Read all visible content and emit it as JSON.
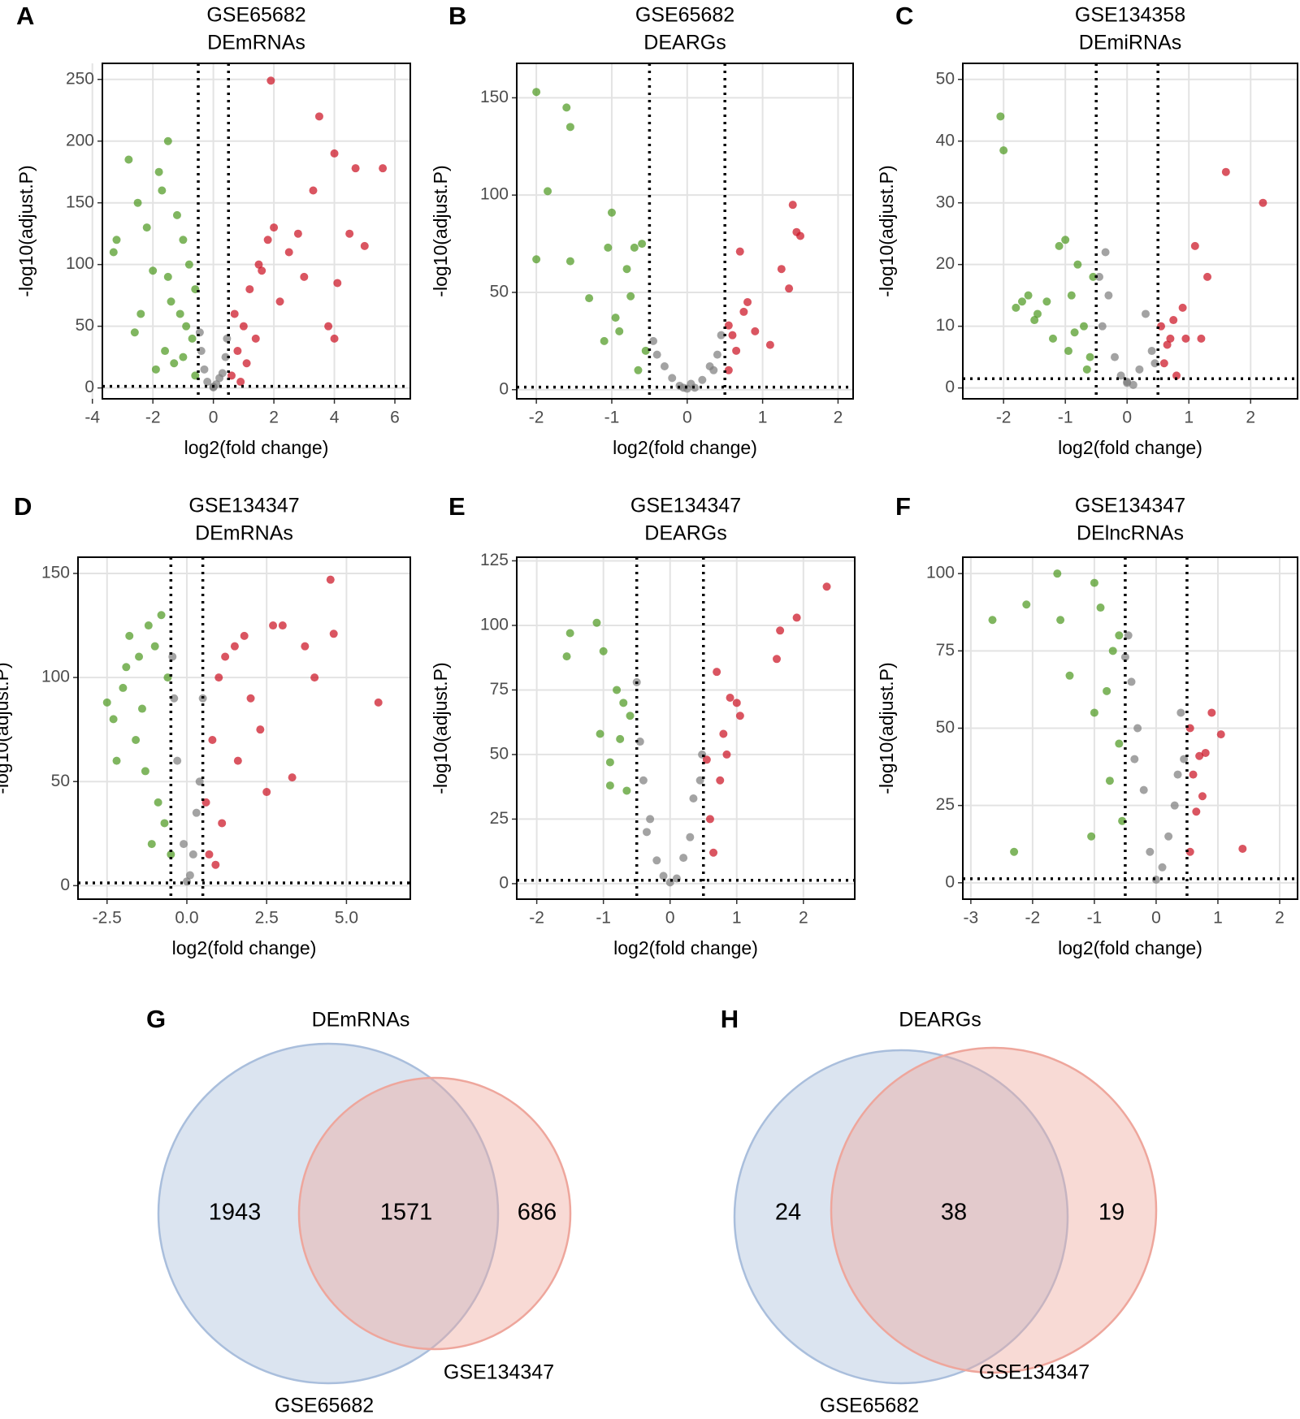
{
  "chart_data": [
    {
      "type": "scatter",
      "panel": "A",
      "title": "GSE65682",
      "subtitle": "DEmRNAs",
      "x_label": "log2(fold change)",
      "y_label": "-log10(adjust.P)",
      "xlim": [
        -3.67,
        6.51
      ],
      "ylim": [
        -8.8,
        263
      ],
      "xticks": [
        -4,
        -2,
        0,
        2,
        4,
        6
      ],
      "yticks": [
        0,
        50,
        100,
        150,
        200,
        250
      ],
      "grid": true,
      "vlines": [
        -0.5,
        0.5
      ],
      "hline": 1.3,
      "series": [
        {
          "color": "#4f9a22",
          "x": [
            -3.2,
            -3.3,
            -2.8,
            -2.5,
            -2.2,
            -1.8,
            -1.5,
            -1.7,
            -1.2,
            -1.0,
            -0.8,
            -0.6,
            -2.0,
            -1.4,
            -1.1,
            -0.9,
            -0.7,
            -1.6,
            -2.4,
            -1.3,
            -1.9,
            -0.6,
            -1.0,
            -2.6,
            -1.5
          ],
          "y": [
            120,
            110,
            185,
            150,
            130,
            175,
            200,
            160,
            140,
            120,
            100,
            80,
            95,
            70,
            60,
            50,
            40,
            30,
            60,
            20,
            15,
            10,
            25,
            45,
            90
          ]
        },
        {
          "color": "#7f7f7f",
          "x": [
            -0.4,
            -0.3,
            -0.2,
            0,
            0.1,
            0.2,
            0.3,
            0.4,
            -0.45,
            0.45,
            0
          ],
          "y": [
            30,
            15,
            5,
            1,
            3,
            8,
            12,
            25,
            45,
            40,
            0.5
          ]
        },
        {
          "color": "#cc1424",
          "x": [
            0.6,
            0.8,
            1.0,
            1.2,
            1.5,
            1.8,
            2.0,
            2.5,
            3.0,
            3.5,
            4.0,
            4.5,
            5.0,
            5.6,
            1.9,
            3.3,
            4.7,
            4.1,
            0.7,
            1.1,
            1.4,
            2.2,
            2.8,
            0.9,
            1.6,
            3.8,
            4.0
          ],
          "y": [
            10,
            30,
            50,
            80,
            100,
            120,
            130,
            110,
            90,
            220,
            190,
            125,
            115,
            178,
            249,
            160,
            178,
            85,
            60,
            20,
            40,
            70,
            125,
            5,
            95,
            50,
            40
          ]
        }
      ]
    },
    {
      "type": "scatter",
      "panel": "B",
      "title": "GSE65682",
      "subtitle": "DEARGs",
      "x_label": "log2(fold change)",
      "y_label": "-log10(adjust.P)",
      "xlim": [
        -2.26,
        2.2
      ],
      "ylim": [
        -4.7,
        167.7
      ],
      "xticks": [
        -2,
        -1,
        0,
        1,
        2
      ],
      "yticks": [
        0,
        50,
        100,
        150
      ],
      "grid": true,
      "vlines": [
        -0.5,
        0.5
      ],
      "hline": 1.3,
      "series": [
        {
          "color": "#4f9a22",
          "x": [
            -2.0,
            -2.0,
            -1.85,
            -1.6,
            -1.55,
            -1.55,
            -1.3,
            -1.0,
            -0.95,
            -1.05,
            -0.8,
            -0.7,
            -0.6,
            -0.9,
            -0.75,
            -0.55,
            -1.1,
            -0.65
          ],
          "y": [
            153,
            67,
            102,
            145,
            135,
            66,
            47,
            91,
            37,
            73,
            62,
            73,
            75,
            30,
            48,
            20,
            25,
            10
          ]
        },
        {
          "color": "#7f7f7f",
          "x": [
            -0.45,
            -0.3,
            -0.2,
            -0.1,
            0,
            0.1,
            0.2,
            0.3,
            0.4,
            0.45,
            -0.4,
            0.35,
            0.05,
            -0.05
          ],
          "y": [
            25,
            12,
            6,
            2,
            0.5,
            1,
            5,
            12,
            18,
            28,
            18,
            10,
            3,
            1
          ]
        },
        {
          "color": "#cc1424",
          "x": [
            0.55,
            0.6,
            0.7,
            0.8,
            0.65,
            0.9,
            1.1,
            1.25,
            1.4,
            1.45,
            1.5,
            1.35,
            0.75,
            0.55
          ],
          "y": [
            33,
            28,
            71,
            45,
            20,
            30,
            23,
            62,
            95,
            81,
            79,
            52,
            40,
            10
          ]
        }
      ]
    },
    {
      "type": "scatter",
      "panel": "C",
      "title": "GSE134358",
      "subtitle": "DEmiRNAs",
      "x_label": "log2(fold change)",
      "y_label": "-log10(adjust.P)",
      "xlim": [
        -2.66,
        2.76
      ],
      "ylim": [
        -1.76,
        52.6
      ],
      "xticks": [
        -2,
        -1,
        0,
        1,
        2
      ],
      "yticks": [
        0,
        10,
        20,
        30,
        40,
        50
      ],
      "grid": true,
      "vlines": [
        -0.5,
        0.5
      ],
      "hline": 1.5,
      "series": [
        {
          "color": "#4f9a22",
          "x": [
            -2.05,
            -2.0,
            -1.8,
            -1.6,
            -1.5,
            -1.3,
            -1.1,
            -1.0,
            -0.9,
            -0.8,
            -0.6,
            -0.7,
            -1.2,
            -1.45,
            -0.55,
            -0.95,
            -0.65,
            -0.85,
            -1.7
          ],
          "y": [
            44,
            38.5,
            13,
            15,
            11,
            14,
            23,
            24,
            15,
            20,
            5,
            10,
            8,
            12,
            18,
            6,
            3,
            9,
            14
          ]
        },
        {
          "color": "#7f7f7f",
          "x": [
            -0.4,
            -0.3,
            -0.2,
            0,
            0.2,
            0.3,
            0.4,
            -0.1,
            0.1,
            -0.35,
            0.45,
            -0.45,
            0
          ],
          "y": [
            10,
            15,
            5,
            1,
            3,
            12,
            6,
            2,
            0.5,
            22,
            4,
            18,
            0.8
          ]
        },
        {
          "color": "#cc1424",
          "x": [
            0.55,
            0.6,
            0.7,
            0.8,
            0.9,
            1.1,
            1.2,
            1.6,
            2.2,
            1.3,
            0.75,
            0.65,
            0.95
          ],
          "y": [
            10,
            4,
            8,
            2,
            13,
            23,
            8,
            35,
            30,
            18,
            11,
            7,
            8
          ]
        }
      ]
    },
    {
      "type": "scatter",
      "panel": "D",
      "title": "GSE134347",
      "subtitle": "DEmRNAs",
      "x_label": "log2(fold change)",
      "y_label": "-log10(adjust.P)",
      "xlim": [
        -3.41,
        7.0
      ],
      "ylim": [
        -6.5,
        157.8
      ],
      "xticks": [
        -2.5,
        {
          "value": 0,
          "label": "0.0"
        },
        2.5,
        {
          "value": 5,
          "label": "5.0"
        }
      ],
      "yticks": [
        0,
        50,
        100,
        150
      ],
      "grid": true,
      "vlines": [
        -0.5,
        0.5
      ],
      "hline": 1.3,
      "series": [
        {
          "color": "#4f9a22",
          "x": [
            -2.5,
            -2.3,
            -2.0,
            -1.8,
            -1.5,
            -1.2,
            -1.0,
            -0.8,
            -0.6,
            -2.2,
            -1.6,
            -1.3,
            -0.9,
            -0.7,
            -1.1,
            -0.5,
            -1.9,
            -1.4
          ],
          "y": [
            88,
            80,
            95,
            120,
            110,
            125,
            115,
            130,
            100,
            60,
            70,
            55,
            40,
            30,
            20,
            15,
            105,
            85
          ]
        },
        {
          "color": "#7f7f7f",
          "x": [
            -0.4,
            -0.3,
            -0.1,
            0,
            0.1,
            0.2,
            0.4,
            0.5,
            -0.45,
            0.3
          ],
          "y": [
            90,
            60,
            20,
            2,
            5,
            15,
            50,
            90,
            110,
            35
          ]
        },
        {
          "color": "#cc1424",
          "x": [
            0.6,
            0.8,
            1.0,
            1.2,
            1.5,
            1.8,
            2.0,
            2.3,
            2.7,
            3.0,
            3.3,
            3.7,
            4.0,
            4.5,
            4.6,
            6.0,
            1.1,
            0.7,
            1.6,
            2.5,
            0.9
          ],
          "y": [
            40,
            70,
            100,
            110,
            115,
            120,
            90,
            75,
            125,
            125,
            52,
            115,
            100,
            147,
            121,
            88,
            30,
            15,
            60,
            45,
            10
          ]
        }
      ]
    },
    {
      "type": "scatter",
      "panel": "E",
      "title": "GSE134347",
      "subtitle": "DEARGs",
      "x_label": "log2(fold change)",
      "y_label": "-log10(adjust.P)",
      "xlim": [
        -2.3,
        2.77
      ],
      "ylim": [
        -6,
        126.4
      ],
      "xticks": [
        -2,
        -1,
        0,
        1,
        2
      ],
      "yticks": [
        0,
        25,
        50,
        75,
        100,
        125
      ],
      "grid": true,
      "vlines": [
        -0.5,
        0.5
      ],
      "hline": 1.3,
      "series": [
        {
          "color": "#4f9a22",
          "x": [
            -1.55,
            -1.5,
            -1.1,
            -1.05,
            -1.0,
            -0.9,
            -0.8,
            -0.75,
            -0.7,
            -0.6,
            -0.65,
            -0.9
          ],
          "y": [
            88,
            97,
            101,
            58,
            90,
            38,
            75,
            56,
            70,
            65,
            36,
            47
          ]
        },
        {
          "color": "#7f7f7f",
          "x": [
            -0.5,
            -0.45,
            -0.4,
            -0.3,
            -0.2,
            -0.1,
            0,
            0.1,
            0.2,
            0.3,
            0.35,
            0.45,
            0.48,
            -0.35
          ],
          "y": [
            78,
            55,
            40,
            25,
            9,
            3,
            0.5,
            2,
            10,
            18,
            33,
            40,
            50,
            20
          ]
        },
        {
          "color": "#cc1424",
          "x": [
            0.55,
            0.6,
            0.7,
            0.8,
            0.9,
            1.0,
            1.05,
            0.65,
            1.6,
            1.65,
            1.9,
            2.35,
            0.75,
            0.85
          ],
          "y": [
            48,
            25,
            82,
            58,
            72,
            70,
            65,
            12,
            87,
            98,
            103,
            115,
            40,
            50
          ]
        }
      ]
    },
    {
      "type": "scatter",
      "panel": "F",
      "title": "GSE134347",
      "subtitle": "DElncRNAs",
      "x_label": "log2(fold change)",
      "y_label": "-log10(adjust.P)",
      "xlim": [
        -3.13,
        2.29
      ],
      "ylim": [
        -5.3,
        105.3
      ],
      "xticks": [
        -3,
        -2,
        -1,
        0,
        1,
        2
      ],
      "yticks": [
        0,
        25,
        50,
        75,
        100
      ],
      "grid": true,
      "vlines": [
        -0.5,
        0.5
      ],
      "hline": 1.3,
      "series": [
        {
          "color": "#4f9a22",
          "x": [
            -2.65,
            -2.3,
            -2.1,
            -1.6,
            -1.55,
            -1.4,
            -1.0,
            -1.05,
            -0.9,
            -0.8,
            -0.6,
            -0.7,
            -1.0,
            -0.75,
            -0.55,
            -0.6
          ],
          "y": [
            85,
            10,
            90,
            100,
            85,
            67,
            97,
            15,
            89,
            62,
            80,
            75,
            55,
            33,
            20,
            45
          ]
        },
        {
          "color": "#7f7f7f",
          "x": [
            -0.5,
            -0.45,
            -0.4,
            -0.3,
            -0.2,
            -0.1,
            0,
            0.1,
            0.2,
            0.3,
            0.4,
            0.45,
            0.35,
            -0.35
          ],
          "y": [
            73,
            80,
            65,
            50,
            30,
            10,
            1,
            5,
            15,
            25,
            55,
            40,
            35,
            40
          ]
        },
        {
          "color": "#cc1424",
          "x": [
            0.55,
            0.6,
            0.7,
            0.75,
            0.9,
            1.05,
            1.4,
            0.65,
            0.8,
            0.55
          ],
          "y": [
            10,
            35,
            41,
            28,
            55,
            48,
            11,
            23,
            42,
            50
          ]
        }
      ]
    },
    {
      "type": "venn",
      "panel": "G",
      "title": "DEmRNAs",
      "sets": [
        {
          "name": "GSE65682",
          "color": "#a9bedc"
        },
        {
          "name": "GSE134347",
          "color": "#eea69c"
        }
      ],
      "values": [
        1943,
        1571,
        686
      ]
    },
    {
      "type": "venn",
      "panel": "H",
      "title": "DEARGs",
      "sets": [
        {
          "name": "GSE65682",
          "color": "#a9bedc"
        },
        {
          "name": "GSE134347",
          "color": "#eea69c"
        }
      ],
      "values": [
        24,
        38,
        19
      ]
    }
  ]
}
